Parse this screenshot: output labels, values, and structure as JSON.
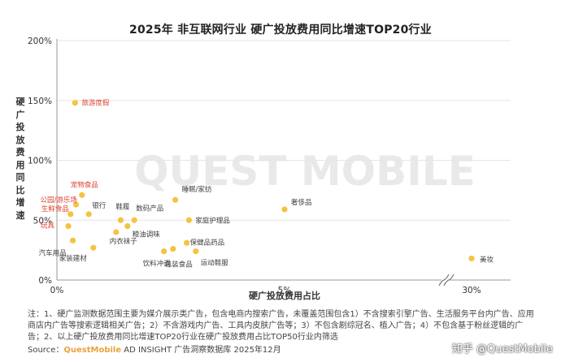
{
  "title": "2025年 非互联网行业 硬广投放费用同比增速TOP20行业",
  "watermark": "QUEST MOBILE",
  "chart_data": {
    "type": "scatter",
    "xlabel": "硬广投放费用占比",
    "ylabel": "硬广投放费用同比增速",
    "x_tick_labels": [
      "0%",
      "5%",
      "30%"
    ],
    "y_tick_labels": [
      "0%",
      "50%",
      "100%",
      "150%",
      "200%"
    ],
    "axis_break": true,
    "xlim": [
      0,
      31
    ],
    "ylim": [
      0,
      200
    ],
    "highlight_color": "#e0412f",
    "normal_color": "#404040",
    "marker_color": "#f5c342",
    "points": [
      {
        "name": "旅游度假",
        "x": 0.4,
        "y": 148,
        "highlight": true
      },
      {
        "name": "宠物食品",
        "x": 0.55,
        "y": 71,
        "highlight": true
      },
      {
        "name": "公园/游乐场",
        "x": 0.42,
        "y": 63,
        "highlight": true
      },
      {
        "name": "生鲜食品",
        "x": 0.3,
        "y": 55,
        "highlight": true
      },
      {
        "name": "玩具",
        "x": 0.25,
        "y": 45,
        "highlight": true
      },
      {
        "name": "银行",
        "x": 0.7,
        "y": 55,
        "highlight": false
      },
      {
        "name": "汽车用品",
        "x": 0.35,
        "y": 33,
        "highlight": false
      },
      {
        "name": "家装建材",
        "x": 0.8,
        "y": 27,
        "highlight": false
      },
      {
        "name": "鞋履",
        "x": 1.4,
        "y": 50,
        "highlight": false
      },
      {
        "name": "内衣袜子",
        "x": 1.3,
        "y": 40,
        "highlight": false
      },
      {
        "name": "数码产品",
        "x": 1.7,
        "y": 50,
        "highlight": false
      },
      {
        "name": "粮油调味",
        "x": 1.55,
        "y": 45,
        "highlight": false
      },
      {
        "name": "睡眠/家纺",
        "x": 2.6,
        "y": 67,
        "highlight": false
      },
      {
        "name": "家庭护理品",
        "x": 2.9,
        "y": 50,
        "highlight": false
      },
      {
        "name": "保健品药品",
        "x": 2.85,
        "y": 31,
        "highlight": false
      },
      {
        "name": "运动鞋服",
        "x": 3.05,
        "y": 24,
        "highlight": false
      },
      {
        "name": "饮料冲调",
        "x": 2.35,
        "y": 24,
        "highlight": false
      },
      {
        "name": "包装食品",
        "x": 2.55,
        "y": 26,
        "highlight": false
      },
      {
        "name": "奢侈品",
        "x": 5.0,
        "y": 59,
        "highlight": false
      },
      {
        "name": "美妆",
        "x": 30.0,
        "y": 18,
        "highlight": false
      }
    ]
  },
  "footnote": "注：1、硬广监测数据范围主要为媒介展示类广告，包含电商内搜索广告，未覆盖范围包含1）不含搜索引擎广告、生活服务平台内广告、应用商店内广告等搜索逻辑相关广告；2）不含游戏内广告、工具内皮肤广告等；3）不包含剧综冠名、植入广告；4）不包含基于粉丝逻辑的广告；2、以上硬广投放费用同比增速TOP20行业在硬广投放费用占比TOP50行业内筛选",
  "source_prefix": "Source：",
  "source_brand": "QuestMobile",
  "source_rest": " AD INSIGHT 广告洞察数据库 2025年12月",
  "corner_watermark": "知乎 @QuestMobile"
}
